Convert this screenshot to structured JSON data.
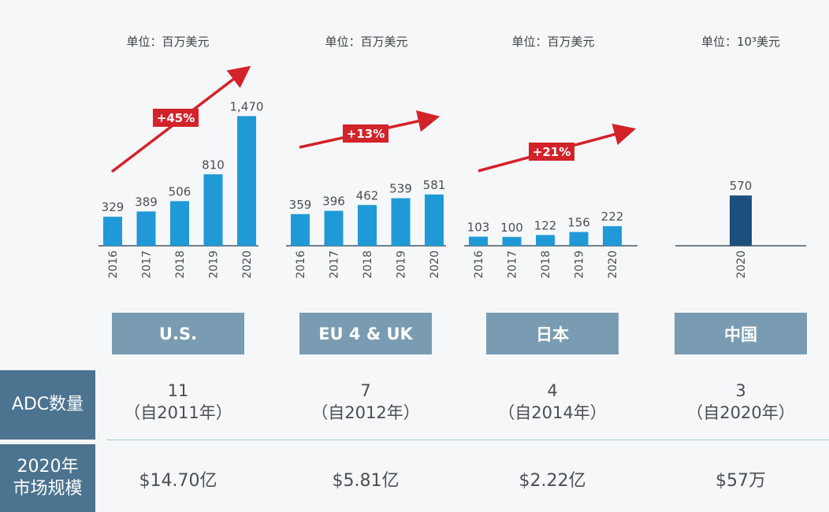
{
  "chart_data": [
    {
      "type": "bar",
      "region": "U.S.",
      "unit_label": "单位：百万美元",
      "categories": [
        "2016",
        "2017",
        "2018",
        "2019",
        "2020"
      ],
      "values": [
        329,
        389,
        506,
        810,
        1470
      ],
      "value_labels": [
        "329",
        "389",
        "506",
        "810",
        "1,470"
      ],
      "growth_label": "+45%"
    },
    {
      "type": "bar",
      "region": "EU 4 & UK",
      "unit_label": "单位：百万美元",
      "categories": [
        "2016",
        "2017",
        "2018",
        "2019",
        "2020"
      ],
      "values": [
        359,
        396,
        462,
        539,
        581
      ],
      "value_labels": [
        "359",
        "396",
        "462",
        "539",
        "581"
      ],
      "growth_label": "+13%"
    },
    {
      "type": "bar",
      "region": "日本",
      "unit_label": "单位：百万美元",
      "categories": [
        "2016",
        "2017",
        "2018",
        "2019",
        "2020"
      ],
      "values": [
        103,
        100,
        122,
        156,
        222
      ],
      "value_labels": [
        "103",
        "100",
        "122",
        "156",
        "222"
      ],
      "growth_label": "+21%"
    },
    {
      "type": "bar",
      "region": "中国",
      "unit_label": "单位：10³美元",
      "categories": [
        "2020"
      ],
      "values": [
        570
      ],
      "value_labels": [
        "570"
      ],
      "growth_label": ""
    }
  ],
  "table": {
    "adc_count_label": "ADC数量",
    "market_label_line1": "2020年",
    "market_label_line2": "市场规模",
    "counts": [
      {
        "count": "11",
        "since": "（自2011年）"
      },
      {
        "count": "7",
        "since": "（自2012年）"
      },
      {
        "count": "4",
        "since": "（自2014年）"
      },
      {
        "count": "3",
        "since": "（自2020年）"
      }
    ],
    "market_sizes": [
      "$14.70亿",
      "$5.81亿",
      "$2.22亿",
      "$57万"
    ]
  },
  "colors": {
    "bar": "#1f9ad6",
    "bar_china": "#1c4f7d",
    "arrow": "#d2232a",
    "region_box": "#7a9cb3",
    "row_label": "#4c7390"
  }
}
